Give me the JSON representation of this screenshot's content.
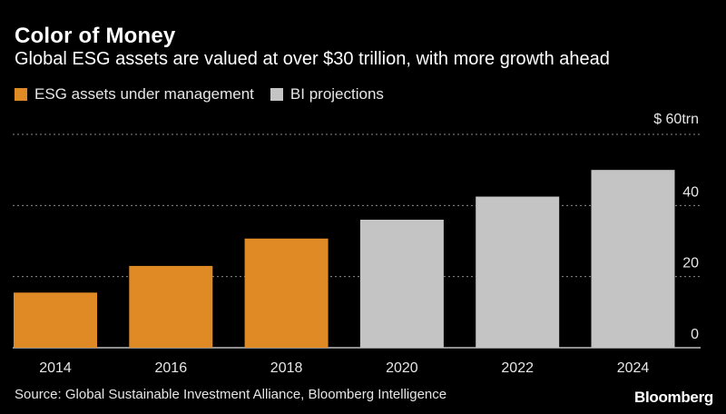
{
  "header": {
    "title": "Color of Money",
    "subtitle": "Global ESG assets are valued at over $30 trillion, with more growth ahead"
  },
  "legend": [
    {
      "label": "ESG assets under management",
      "color": "#e08a25"
    },
    {
      "label": "BI projections",
      "color": "#c4c4c4"
    }
  ],
  "footer": {
    "source": "Source: Global Sustainable Investment Alliance, Bloomberg Intelligence",
    "logo": "Bloomberg"
  },
  "colors": {
    "background": "#000000",
    "actual": "#e08a25",
    "projection": "#c4c4c4",
    "grid": "#8a8a8a",
    "text": "#ffffff"
  },
  "chart_data": {
    "type": "bar",
    "categories": [
      "2014",
      "2016",
      "2018",
      "2020",
      "2022",
      "2024"
    ],
    "series": [
      {
        "name": "ESG assets under management",
        "values": [
          15.5,
          23,
          30.7,
          null,
          null,
          null
        ]
      },
      {
        "name": "BI projections",
        "values": [
          null,
          null,
          null,
          36,
          42.5,
          50
        ]
      }
    ],
    "ylim": [
      0,
      60
    ],
    "yticks": [
      0,
      20,
      40,
      60
    ],
    "ytick_labels": [
      "0",
      "20",
      "40",
      "$ 60trn"
    ],
    "grid": true,
    "legend_position": "top-left"
  }
}
